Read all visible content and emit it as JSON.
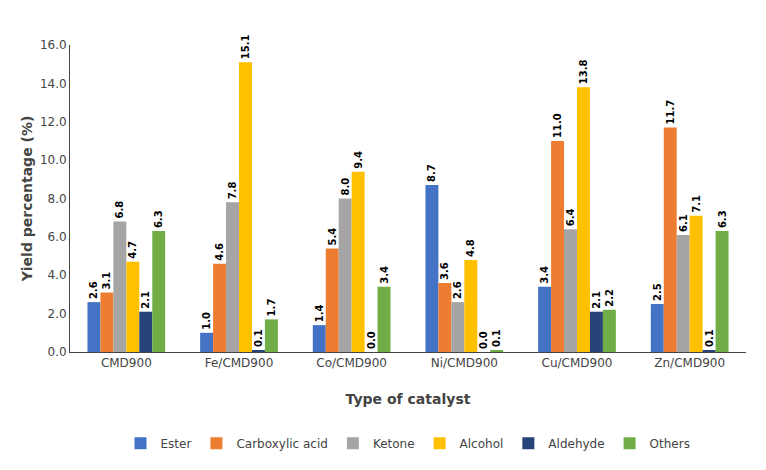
{
  "chart_data": {
    "type": "bar",
    "xlabel": "Type of catalyst",
    "ylabel": "Yield percentage (%)",
    "categories": [
      "CMD900",
      "Fe/CMD900",
      "Co/CMD900",
      "Ni/CMD900",
      "Cu/CMD900",
      "Zn/CMD900"
    ],
    "series": [
      {
        "name": "Ester",
        "color": "#4472C4",
        "values": [
          2.6,
          1.0,
          1.4,
          8.7,
          3.4,
          2.5
        ],
        "value_labels": [
          "2.6",
          "1.0",
          "1.4",
          "8.7",
          "3.4",
          "2.5"
        ]
      },
      {
        "name": "Carboxylic acid",
        "color": "#ED7D31",
        "values": [
          3.1,
          4.6,
          5.4,
          3.6,
          11.0,
          11.7
        ],
        "value_labels": [
          "3.1",
          "4.6",
          "5.4",
          "3.6",
          "11.0",
          "11.7"
        ]
      },
      {
        "name": "Ketone",
        "color": "#A5A5A5",
        "values": [
          6.8,
          7.8,
          8.0,
          2.6,
          6.4,
          6.1
        ],
        "value_labels": [
          "6.8",
          "7.8",
          "8.0",
          "2.6",
          "6.4",
          "6.1"
        ]
      },
      {
        "name": "Alcohol",
        "color": "#FFC000",
        "values": [
          4.7,
          15.1,
          9.4,
          4.8,
          13.8,
          7.1
        ],
        "value_labels": [
          "4.7",
          "15.1",
          "9.4",
          "4.8",
          "13.8",
          "7.1"
        ]
      },
      {
        "name": "Aldehyde",
        "color": "#264478",
        "values": [
          2.1,
          0.1,
          0.0,
          0.0,
          2.1,
          0.1
        ],
        "value_labels": [
          "2.1",
          "0.1",
          "0.0",
          "0.0",
          "2.1",
          "0.1"
        ]
      },
      {
        "name": "Others",
        "color": "#70AD47",
        "values": [
          6.3,
          1.7,
          3.4,
          0.1,
          2.2,
          6.3
        ],
        "value_labels": [
          "6.3",
          "1.7",
          "3.4",
          "0.1",
          "2.2",
          "6.3"
        ]
      }
    ],
    "ylim": [
      0,
      16.0
    ],
    "yticks": [
      {
        "value": 0,
        "label": "0.0"
      },
      {
        "value": 2,
        "label": "2.0"
      },
      {
        "value": 4,
        "label": "4.0"
      },
      {
        "value": 6,
        "label": "6.0"
      },
      {
        "value": 8,
        "label": "8.0"
      },
      {
        "value": 10,
        "label": "10.0"
      },
      {
        "value": 12,
        "label": "12.0"
      },
      {
        "value": 14,
        "label": "14.0"
      },
      {
        "value": 16,
        "label": "16.0"
      }
    ],
    "grid": false,
    "legend": "bottom",
    "data_labels": true
  }
}
